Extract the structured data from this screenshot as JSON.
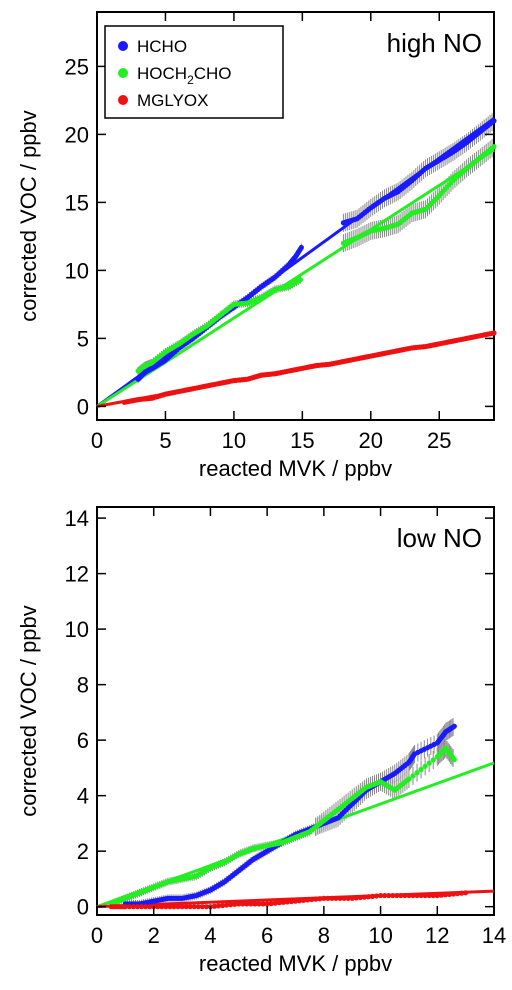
{
  "chart_data": [
    {
      "type": "scatter",
      "panel_label": "high NO",
      "xlabel": "reacted MVK / ppbv",
      "ylabel": "corrected VOC / ppbv",
      "xlim": [
        0,
        29
      ],
      "ylim": [
        -1,
        29
      ],
      "xticks": [
        0,
        5,
        10,
        15,
        20,
        25
      ],
      "yticks": [
        0,
        5,
        10,
        15,
        20,
        25
      ],
      "legend_position": "top-left",
      "error_bar_color": "#888888",
      "series": [
        {
          "name": "HCHO",
          "color": "#1a1aff",
          "fit_slope": 0.73,
          "points": [
            [
              3.0,
              2.0
            ],
            [
              3.5,
              2.5
            ],
            [
              4.2,
              2.9
            ],
            [
              5.0,
              3.4
            ],
            [
              6.0,
              4.3
            ],
            [
              7.0,
              5.0
            ],
            [
              8.0,
              5.8
            ],
            [
              9.0,
              6.6
            ],
            [
              10.0,
              7.3
            ],
            [
              11.0,
              8.0
            ],
            [
              12.0,
              8.8
            ],
            [
              13.0,
              9.5
            ],
            [
              14.0,
              10.4
            ],
            [
              14.5,
              11.0
            ],
            [
              15.0,
              11.8
            ],
            [
              18.0,
              13.5
            ],
            [
              19.0,
              13.8
            ],
            [
              20.0,
              14.6
            ],
            [
              21.0,
              15.3
            ],
            [
              22.0,
              15.8
            ],
            [
              23.0,
              16.6
            ],
            [
              24.0,
              17.5
            ],
            [
              25.0,
              18.1
            ],
            [
              26.0,
              18.7
            ],
            [
              27.0,
              19.4
            ],
            [
              28.0,
              20.2
            ],
            [
              29.0,
              21.0
            ]
          ]
        },
        {
          "name": "HOCH2CHO",
          "color": "#22ee22",
          "fit_slope": 0.65,
          "points": [
            [
              3.0,
              2.6
            ],
            [
              3.5,
              3.0
            ],
            [
              4.0,
              3.2
            ],
            [
              5.0,
              4.0
            ],
            [
              6.0,
              4.6
            ],
            [
              7.0,
              5.3
            ],
            [
              8.0,
              5.9
            ],
            [
              9.0,
              6.7
            ],
            [
              10.0,
              7.5
            ],
            [
              11.0,
              7.6
            ],
            [
              12.0,
              8.0
            ],
            [
              13.0,
              8.6
            ],
            [
              14.0,
              8.8
            ],
            [
              15.0,
              9.4
            ],
            [
              18.0,
              12.0
            ],
            [
              19.0,
              12.4
            ],
            [
              20.0,
              12.9
            ],
            [
              21.0,
              13.1
            ],
            [
              22.0,
              13.4
            ],
            [
              23.0,
              14.2
            ],
            [
              24.0,
              14.5
            ],
            [
              25.0,
              15.5
            ],
            [
              26.0,
              16.6
            ],
            [
              27.0,
              17.5
            ],
            [
              28.0,
              18.3
            ],
            [
              29.0,
              19.1
            ]
          ]
        },
        {
          "name": "MGLYOX",
          "color": "#ee1111",
          "fit_slope": 0.185,
          "points": [
            [
              2.0,
              0.3
            ],
            [
              3.0,
              0.5
            ],
            [
              4.0,
              0.6
            ],
            [
              5.0,
              0.9
            ],
            [
              6.0,
              1.1
            ],
            [
              7.0,
              1.3
            ],
            [
              8.0,
              1.5
            ],
            [
              9.0,
              1.7
            ],
            [
              10.0,
              1.9
            ],
            [
              11.0,
              2.0
            ],
            [
              12.0,
              2.3
            ],
            [
              13.0,
              2.4
            ],
            [
              14.0,
              2.6
            ],
            [
              15.0,
              2.8
            ],
            [
              16.0,
              3.0
            ],
            [
              17.0,
              3.1
            ],
            [
              18.0,
              3.3
            ],
            [
              19.0,
              3.5
            ],
            [
              20.0,
              3.7
            ],
            [
              21.0,
              3.9
            ],
            [
              22.0,
              4.1
            ],
            [
              23.0,
              4.3
            ],
            [
              24.0,
              4.4
            ],
            [
              25.0,
              4.6
            ],
            [
              26.0,
              4.8
            ],
            [
              27.0,
              5.0
            ],
            [
              28.0,
              5.2
            ],
            [
              29.0,
              5.4
            ]
          ]
        }
      ],
      "legend_items": [
        {
          "name": "HCHO",
          "label": "HCHO",
          "color": "#1a1aff"
        },
        {
          "name": "HOCH2CHO",
          "label_pre": "HOCH",
          "label_sub": "2",
          "label_post": "CHO",
          "color": "#22ee22"
        },
        {
          "name": "MGLYOX",
          "label": "MGLYOX",
          "color": "#ee1111"
        }
      ]
    },
    {
      "type": "scatter",
      "panel_label": "low NO",
      "xlabel": "reacted MVK / ppbv",
      "ylabel": "corrected VOC / ppbv",
      "xlim": [
        0,
        14
      ],
      "ylim": [
        -0.3,
        14.4
      ],
      "xticks": [
        0,
        2,
        4,
        6,
        8,
        10,
        12,
        14
      ],
      "yticks": [
        0,
        2,
        4,
        6,
        8,
        10,
        12,
        14
      ],
      "error_bar_color": "#888888",
      "series": [
        {
          "name": "HCHO",
          "color": "#1a1aff",
          "points": [
            [
              1.0,
              0.1
            ],
            [
              1.5,
              0.1
            ],
            [
              2.0,
              0.2
            ],
            [
              2.5,
              0.3
            ],
            [
              3.0,
              0.3
            ],
            [
              3.5,
              0.4
            ],
            [
              4.0,
              0.6
            ],
            [
              4.5,
              0.9
            ],
            [
              5.0,
              1.3
            ],
            [
              5.5,
              1.7
            ],
            [
              6.0,
              2.0
            ],
            [
              6.5,
              2.3
            ],
            [
              7.0,
              2.6
            ],
            [
              7.5,
              2.8
            ],
            [
              8.0,
              3.0
            ],
            [
              8.5,
              3.2
            ],
            [
              9.0,
              3.7
            ],
            [
              9.5,
              4.2
            ],
            [
              10.0,
              4.5
            ],
            [
              10.5,
              4.8
            ],
            [
              11.0,
              5.2
            ],
            [
              11.2,
              5.5
            ],
            [
              12.0,
              5.9
            ],
            [
              12.3,
              6.3
            ],
            [
              12.6,
              6.5
            ]
          ]
        },
        {
          "name": "HOCH2CHO",
          "color": "#22ee22",
          "fit_slope": 0.37,
          "points": [
            [
              0.5,
              0.1
            ],
            [
              1.0,
              0.3
            ],
            [
              1.5,
              0.5
            ],
            [
              2.0,
              0.7
            ],
            [
              2.5,
              0.9
            ],
            [
              3.0,
              1.0
            ],
            [
              3.5,
              1.1
            ],
            [
              4.0,
              1.4
            ],
            [
              4.5,
              1.6
            ],
            [
              5.0,
              1.9
            ],
            [
              5.5,
              2.1
            ],
            [
              6.0,
              2.2
            ],
            [
              6.5,
              2.3
            ],
            [
              7.0,
              2.5
            ],
            [
              7.5,
              2.7
            ],
            [
              8.0,
              3.1
            ],
            [
              8.5,
              3.5
            ],
            [
              9.0,
              3.9
            ],
            [
              9.5,
              4.3
            ],
            [
              10.0,
              4.5
            ],
            [
              10.5,
              4.2
            ],
            [
              11.0,
              4.6
            ],
            [
              12.0,
              5.4
            ],
            [
              12.3,
              5.7
            ],
            [
              12.6,
              5.3
            ]
          ]
        },
        {
          "name": "MGLYOX",
          "color": "#ee1111",
          "fit_slope": 0.04,
          "points": [
            [
              0.5,
              0.0
            ],
            [
              1.0,
              0.0
            ],
            [
              2.0,
              0.0
            ],
            [
              3.0,
              0.0
            ],
            [
              4.0,
              0.0
            ],
            [
              5.0,
              0.1
            ],
            [
              6.0,
              0.1
            ],
            [
              7.0,
              0.2
            ],
            [
              8.0,
              0.3
            ],
            [
              9.0,
              0.3
            ],
            [
              10.0,
              0.4
            ],
            [
              11.0,
              0.4
            ],
            [
              12.0,
              0.4
            ],
            [
              13.0,
              0.5
            ]
          ]
        }
      ]
    }
  ]
}
